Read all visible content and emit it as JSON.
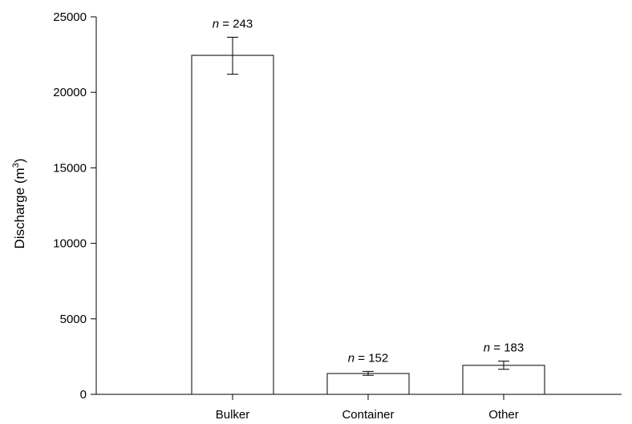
{
  "chart_data": {
    "type": "bar",
    "categories": [
      "Bulker",
      "Container",
      "Other"
    ],
    "values": [
      22450,
      1380,
      1920
    ],
    "errors_low": [
      21200,
      1260,
      1660
    ],
    "errors_high": [
      23650,
      1520,
      2200
    ],
    "annotations": [
      {
        "n_prefix": "n",
        "n_rest": " = 243"
      },
      {
        "n_prefix": "n",
        "n_rest": " = 152"
      },
      {
        "n_prefix": "n",
        "n_rest": " = 183"
      }
    ],
    "ylabel_main": "Discharge (m",
    "ylabel_sup": "3",
    "ylabel_close": ")",
    "xlabel": "",
    "ylim": [
      0,
      25000
    ],
    "yticks": [
      "0",
      "5000",
      "10000",
      "15000",
      "20000",
      "25000"
    ],
    "ytick_values": [
      0,
      5000,
      10000,
      15000,
      20000,
      25000
    ],
    "grid": false,
    "bar_fill": "#ffffff",
    "bar_stroke": "#000000"
  }
}
